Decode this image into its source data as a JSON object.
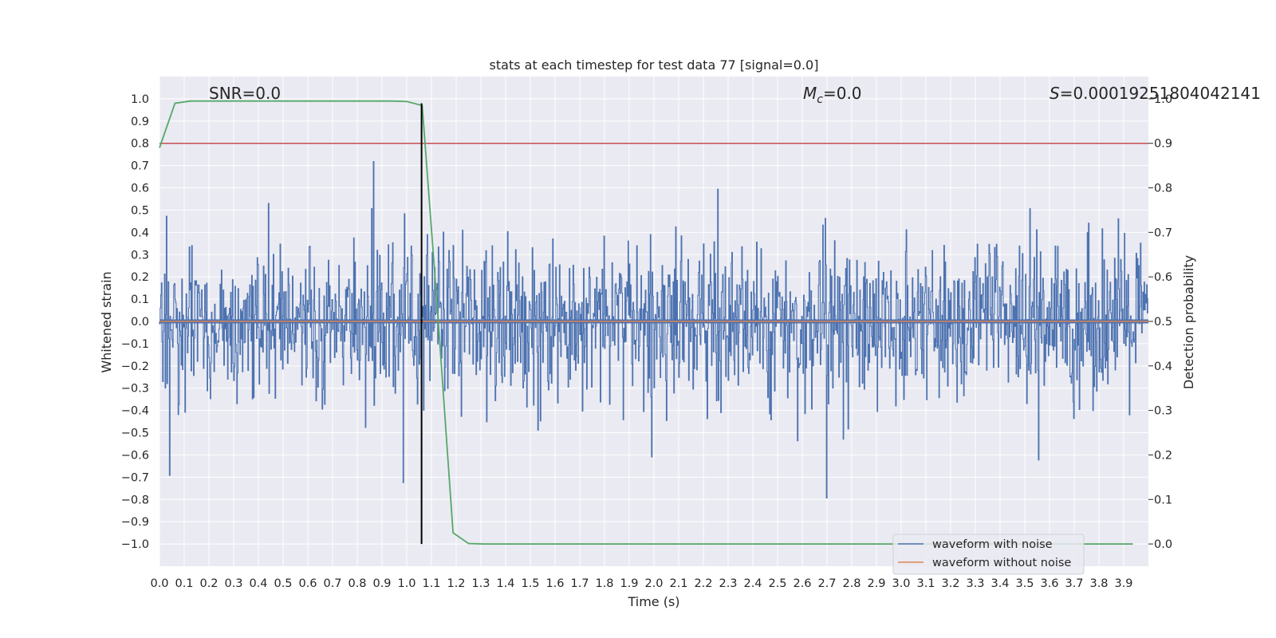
{
  "chart_data": {
    "type": "line",
    "title": "stats at each timestep for test data 77 [signal=0.0]",
    "xlabel": "Time (s)",
    "ylabel": "Whitened strain",
    "y2label": "Detection probability",
    "xlim": [
      0.0,
      4.0
    ],
    "ylim": [
      -1.1,
      1.1
    ],
    "y2lim": [
      -0.05,
      1.05
    ],
    "x_ticks": [
      0.0,
      0.1,
      0.2,
      0.3,
      0.4,
      0.5,
      0.6,
      0.7,
      0.8,
      0.9,
      1.0,
      1.1,
      1.2,
      1.3,
      1.4,
      1.5,
      1.6,
      1.7,
      1.8,
      1.9,
      2.0,
      2.1,
      2.2,
      2.3,
      2.4,
      2.5,
      2.6,
      2.7,
      2.8,
      2.9,
      3.0,
      3.1,
      3.2,
      3.3,
      3.4,
      3.5,
      3.6,
      3.7,
      3.8,
      3.9
    ],
    "y_ticks": [
      -1.0,
      -0.9,
      -0.8,
      -0.7,
      -0.6,
      -0.5,
      -0.4,
      -0.3,
      -0.2,
      -0.1,
      0.0,
      0.1,
      0.2,
      0.3,
      0.4,
      0.5,
      0.6,
      0.7,
      0.8,
      0.9,
      1.0
    ],
    "y2_ticks": [
      0.0,
      0.1,
      0.2,
      0.3,
      0.4,
      0.5,
      0.6,
      0.7,
      0.8,
      0.9,
      1.0
    ],
    "grid": true,
    "legend_position": "lower-right",
    "annotations": {
      "snr": "SNR=0.0",
      "mc_symbol": "M",
      "mc_subscript": "c",
      "mc_value": "=0.0",
      "s_symbol": "S",
      "s_value": "=0.00019251804042141"
    },
    "series": [
      {
        "name": "waveform with noise",
        "axis": "left",
        "color": "#4c72b0",
        "description_kind": "dense noise",
        "noise_envelope": [
          -0.95,
          0.97
        ],
        "typical_range": [
          -0.45,
          0.5
        ]
      },
      {
        "name": "waveform without noise",
        "axis": "left",
        "color": "#dd8452",
        "x": [
          0.0,
          4.0
        ],
        "y": [
          0.0,
          0.0
        ]
      },
      {
        "axis": "right",
        "color": "#55a868",
        "x": [
          0.0,
          0.0625,
          0.125,
          0.1875,
          0.25,
          0.3125,
          0.375,
          0.4375,
          0.5,
          0.5625,
          0.625,
          0.6875,
          0.75,
          0.8125,
          0.875,
          0.9375,
          1.0,
          1.0625,
          1.125,
          1.1875,
          1.25,
          1.3125,
          1.375,
          1.4375,
          1.5,
          1.5625,
          1.625,
          1.6875,
          1.75,
          1.8125,
          1.875,
          1.9375,
          2.0,
          2.0625,
          2.125,
          2.1875,
          2.25,
          2.3125,
          2.375,
          2.4375,
          2.5,
          2.5625,
          2.625,
          2.6875,
          2.75,
          2.8125,
          2.875,
          2.9375,
          3.0,
          3.0625,
          3.125,
          3.1875,
          3.25,
          3.3125,
          3.375,
          3.4375,
          3.5,
          3.5625,
          3.625,
          3.6875,
          3.75,
          3.8125,
          3.875,
          3.9375
        ],
        "y": [
          0.89,
          0.99,
          0.995,
          0.995,
          0.995,
          0.995,
          0.995,
          0.995,
          0.995,
          0.995,
          0.995,
          0.995,
          0.995,
          0.995,
          0.995,
          0.995,
          0.994,
          0.985,
          0.52,
          0.025,
          0.001,
          0.0,
          0.0,
          0.0,
          0.0,
          0.0,
          0.0,
          0.0,
          0.0,
          0.0,
          0.0,
          0.0,
          0.0,
          0.0,
          0.0,
          0.0,
          0.0,
          0.0,
          0.0,
          0.0,
          0.0,
          0.0,
          0.0,
          0.0,
          0.0,
          0.0,
          0.0,
          0.0,
          0.0,
          0.0,
          0.0,
          0.0,
          0.0,
          0.0,
          0.0,
          0.0,
          0.0,
          0.0,
          0.0,
          0.0,
          0.0,
          0.0,
          0.0,
          0.0
        ]
      }
    ],
    "threshold": {
      "axis": "right",
      "value": 0.9,
      "color": "#c44e52"
    },
    "marker_line": {
      "axis": "left",
      "x": 1.06,
      "y_range": [
        -1.0,
        0.98
      ],
      "color": "#000000"
    }
  }
}
